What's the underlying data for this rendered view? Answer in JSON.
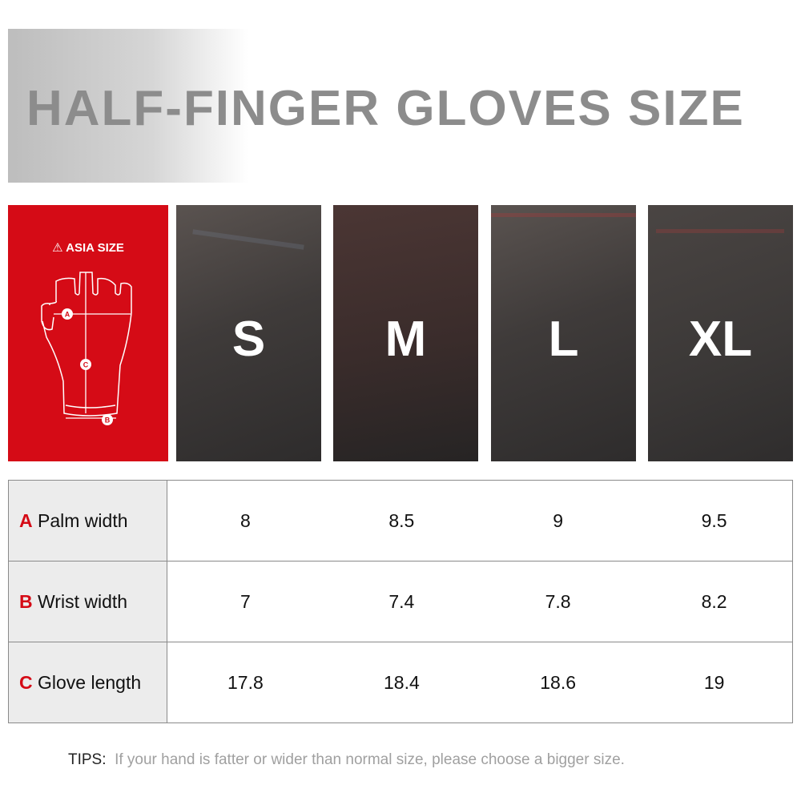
{
  "title": "HALF-FINGER GLOVES SIZE",
  "panel": {
    "label": "ASIA SIZE",
    "icon": "warning-icon",
    "markers": [
      "A",
      "B",
      "C"
    ],
    "color": "#d50b16"
  },
  "sizes": [
    "S",
    "M",
    "L",
    "XL"
  ],
  "table": {
    "rows": [
      {
        "letter": "A",
        "label": "Palm width",
        "values": [
          "8",
          "8.5",
          "9",
          "9.5"
        ]
      },
      {
        "letter": "B",
        "label": "Wrist width",
        "values": [
          "7",
          "7.4",
          "7.8",
          "8.2"
        ]
      },
      {
        "letter": "C",
        "label": "Glove length",
        "values": [
          "17.8",
          "18.4",
          "18.6",
          "19"
        ]
      }
    ]
  },
  "tips": {
    "label": "TIPS:",
    "text": "If your hand is fatter or wider than normal size, please choose a bigger size."
  }
}
